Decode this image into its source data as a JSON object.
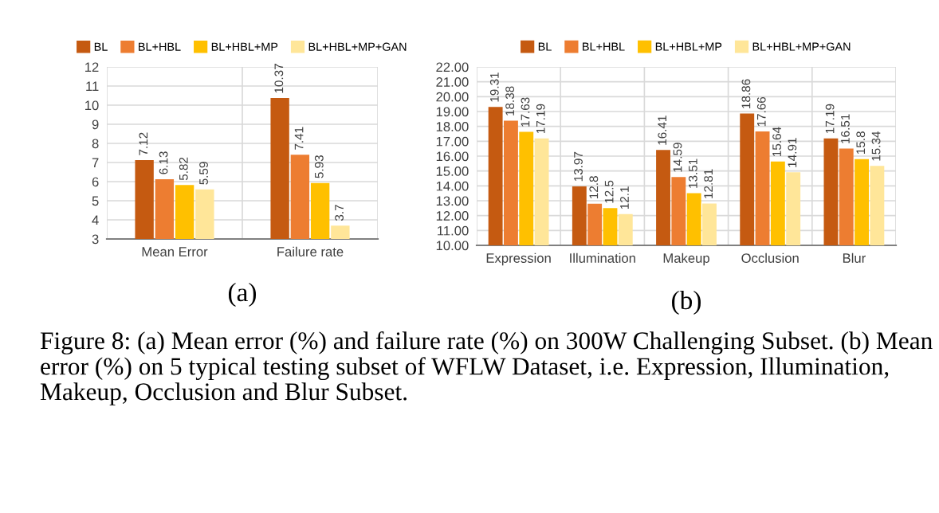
{
  "chart_data": [
    {
      "type": "bar",
      "title": "(a)",
      "categories": [
        "Mean Error",
        "Failure rate"
      ],
      "series": [
        {
          "name": "BL",
          "color": "#c55a11",
          "values": [
            7.12,
            10.37
          ]
        },
        {
          "name": "BL+HBL",
          "color": "#ed7d31",
          "values": [
            6.13,
            7.41
          ]
        },
        {
          "name": "BL+HBL+MP",
          "color": "#ffc000",
          "values": [
            5.82,
            5.93
          ]
        },
        {
          "name": "BL+HBL+MP+GAN",
          "color": "#ffe699",
          "values": [
            5.59,
            3.7
          ]
        }
      ],
      "ylim": [
        3,
        12
      ],
      "yticks": [
        3,
        4,
        5,
        6,
        7,
        8,
        9,
        10,
        11,
        12
      ],
      "grid": true,
      "legend": "top",
      "data_labels": true
    },
    {
      "type": "bar",
      "title": "(b)",
      "categories": [
        "Expression",
        "Illumination",
        "Makeup",
        "Occlusion",
        "Blur"
      ],
      "series": [
        {
          "name": "BL",
          "color": "#c55a11",
          "values": [
            19.31,
            13.97,
            16.41,
            18.86,
            17.19
          ]
        },
        {
          "name": "BL+HBL",
          "color": "#ed7d31",
          "values": [
            18.38,
            12.8,
            14.59,
            17.66,
            16.51
          ]
        },
        {
          "name": "BL+HBL+MP",
          "color": "#ffc000",
          "values": [
            17.63,
            12.5,
            13.51,
            15.64,
            15.8
          ]
        },
        {
          "name": "BL+HBL+MP+GAN",
          "color": "#ffe699",
          "values": [
            17.19,
            12.1,
            12.81,
            14.91,
            15.34
          ]
        }
      ],
      "ylim": [
        10,
        22
      ],
      "yticks": [
        {
          "value": 10,
          "label": "10.00"
        },
        {
          "value": 11,
          "label": "11.00"
        },
        {
          "value": 12,
          "label": "12.00"
        },
        {
          "value": 13,
          "label": "13.00"
        },
        {
          "value": 14,
          "label": "14.00"
        },
        {
          "value": 15,
          "label": "15.00"
        },
        {
          "value": 16,
          "label": "16.00"
        },
        {
          "value": 17,
          "label": "17.00"
        },
        {
          "value": 18,
          "label": "18.00"
        },
        {
          "value": 19,
          "label": "19.00"
        },
        {
          "value": 20,
          "label": "20.00"
        },
        {
          "value": 21,
          "label": "21.00"
        },
        {
          "value": 22,
          "label": "22.00"
        }
      ],
      "grid": true,
      "legend": "top",
      "data_labels": true,
      "annotations": [
        "Figure 8: (a) Mean error (%) and failure rate (%) on 300W Challenging Subset. (b) Mean error (%) on 5 typical testing subset of WFLW Dataset, i.e. Expression, Illumination, Makeup, Occlusion and Blur Subset."
      ]
    }
  ]
}
